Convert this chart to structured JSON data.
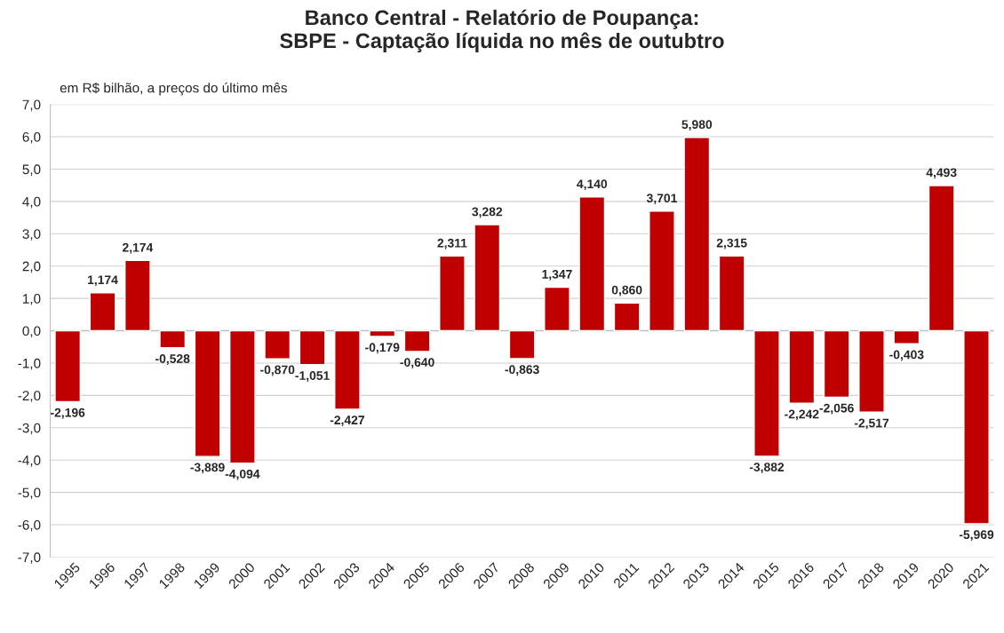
{
  "chart_data": {
    "type": "bar",
    "title": "Banco Central - Relatório de Poupança:\nSBPE - Captação líquida no mês de outubtro",
    "ylabel": "em R$ bilhão, a preços do último mês",
    "categories": [
      "1995",
      "1996",
      "1997",
      "1998",
      "1999",
      "2000",
      "2001",
      "2002",
      "2003",
      "2004",
      "2005",
      "2006",
      "2007",
      "2008",
      "2009",
      "2010",
      "2011",
      "2012",
      "2013",
      "2014",
      "2015",
      "2016",
      "2017",
      "2018",
      "2019",
      "2020",
      "2021"
    ],
    "values": [
      -2.196,
      1.174,
      2.174,
      -0.528,
      -3.889,
      -4.094,
      -0.87,
      -1.051,
      -2.427,
      -0.179,
      -0.64,
      2.311,
      3.282,
      -0.863,
      1.347,
      4.14,
      0.86,
      3.701,
      5.98,
      2.315,
      -3.882,
      -2.242,
      -2.056,
      -2.517,
      -0.403,
      4.493,
      -5.969
    ],
    "value_labels": [
      "-2,196",
      "1,174",
      "2,174",
      "-0,528",
      "-3,889",
      "-4,094",
      "-0,870",
      "-1,051",
      "-2,427",
      "-0,179",
      "-0,640",
      "2,311",
      "3,282",
      "-0,863",
      "1,347",
      "4,140",
      "0,860",
      "3,701",
      "5,980",
      "2,315",
      "-3,882",
      "-2,242",
      "-2,056",
      "-2,517",
      "-0,403",
      "4,493",
      "-5,969"
    ],
    "color": "#c00000",
    "ylim": [
      -7,
      7
    ],
    "yticks": [
      {
        "value": -7,
        "label": "-7,0"
      },
      {
        "value": -6,
        "label": "-6,0"
      },
      {
        "value": -5,
        "label": "-5,0"
      },
      {
        "value": -4,
        "label": "-4,0"
      },
      {
        "value": -3,
        "label": "-3,0"
      },
      {
        "value": -2,
        "label": "-2,0"
      },
      {
        "value": -1,
        "label": "-1,0"
      },
      {
        "value": 0,
        "label": "0,0"
      },
      {
        "value": 1,
        "label": "1,0"
      },
      {
        "value": 2,
        "label": "2,0"
      },
      {
        "value": 3,
        "label": "3,0"
      },
      {
        "value": 4,
        "label": "4,0"
      },
      {
        "value": 5,
        "label": "5,0"
      },
      {
        "value": 6,
        "label": "6,0"
      },
      {
        "value": 7,
        "label": "7,0"
      }
    ],
    "grid": "y",
    "legend": false
  }
}
